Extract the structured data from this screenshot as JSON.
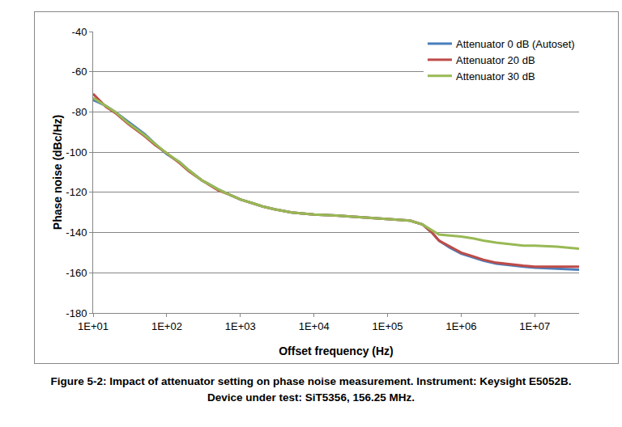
{
  "chart_data": {
    "type": "line",
    "caption": [
      "Figure 5-2: Impact of attenuator setting on phase noise measurement. Instrument: Keysight E5052B.",
      "Device under test: SiT5356, 156.25 MHz."
    ],
    "x_label": "Offset frequency (Hz)",
    "y_label": "Phase noise (dBc/Hz)",
    "log": "x",
    "grid": true,
    "legend": "top right",
    "xlim": [
      10,
      40000000
    ],
    "xticks": [
      {
        "value": 10,
        "label": "1E+01"
      },
      {
        "value": 100,
        "label": "1E+02"
      },
      {
        "value": 1000,
        "label": "1E+03"
      },
      {
        "value": 10000,
        "label": "1E+04"
      },
      {
        "value": 100000,
        "label": "1E+05"
      },
      {
        "value": 1000000,
        "label": "1E+06"
      },
      {
        "value": 10000000,
        "label": "1E+07"
      }
    ],
    "ylim": [
      -180,
      -40
    ],
    "yticks": [
      -180,
      -160,
      -140,
      -120,
      -100,
      -80,
      -60,
      -40
    ],
    "x": [
      10,
      15,
      20,
      30,
      50,
      70,
      100,
      150,
      200,
      300,
      500,
      700,
      1000,
      1500,
      2000,
      3000,
      5000,
      7000,
      10000,
      20000,
      50000,
      100000,
      150000,
      200000,
      300000,
      400000,
      500000,
      700000,
      1000000,
      1500000,
      2000000,
      3000000,
      5000000,
      7000000,
      10000000,
      20000000,
      40000000
    ],
    "series": [
      {
        "name": "Attenuator 0 dB (Autoset)",
        "color": "#4a7ebb",
        "values": [
          -74,
          -77,
          -80,
          -85,
          -91,
          -96,
          -101,
          -105,
          -109,
          -114,
          -118.5,
          -121,
          -123.5,
          -125.5,
          -127,
          -128.5,
          -130,
          -130.5,
          -131,
          -131.5,
          -132.5,
          -133,
          -133.5,
          -134,
          -136,
          -140,
          -144,
          -147.5,
          -150.5,
          -152.5,
          -154,
          -155.5,
          -156.5,
          -157,
          -157.5,
          -158,
          -158.5
        ]
      },
      {
        "name": "Attenuator 20 dB",
        "color": "#be4b48",
        "values": [
          -71,
          -77.5,
          -80.5,
          -86,
          -92,
          -96.5,
          -100.5,
          -105.5,
          -109.5,
          -114,
          -119,
          -121,
          -123.5,
          -125.5,
          -127,
          -128.5,
          -130,
          -130.5,
          -131,
          -131.5,
          -132.5,
          -133,
          -133.5,
          -134,
          -136,
          -140,
          -144,
          -147,
          -150,
          -152,
          -153.5,
          -155,
          -156,
          -156.5,
          -157,
          -157,
          -157
        ]
      },
      {
        "name": "Attenuator 30 dB",
        "color": "#98b954",
        "values": [
          -73,
          -77,
          -80,
          -85.5,
          -91.5,
          -96,
          -100.5,
          -105,
          -109,
          -114,
          -118.5,
          -121,
          -123.5,
          -125.5,
          -127,
          -128.5,
          -130,
          -130.5,
          -131,
          -131.5,
          -132.5,
          -133,
          -133.5,
          -134,
          -136,
          -139,
          -141,
          -141.5,
          -142,
          -143,
          -144,
          -145,
          -146,
          -146.5,
          -146.5,
          -147,
          -148
        ]
      }
    ]
  }
}
